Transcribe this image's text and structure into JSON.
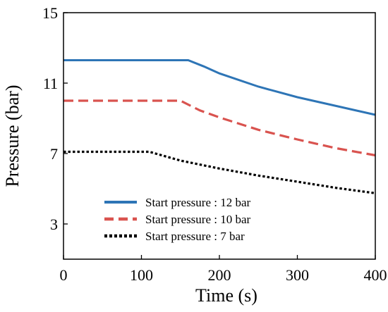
{
  "chart_data": {
    "type": "line",
    "xlabel": "Time (s)",
    "ylabel": "Pressure (bar)",
    "xlim": [
      0,
      400
    ],
    "ylim": [
      1,
      15
    ],
    "xticks": [
      0,
      100,
      200,
      300,
      400
    ],
    "yticks": [
      3,
      7,
      11,
      15
    ],
    "grid": false,
    "legend_position": "bottom-left",
    "series": [
      {
        "name": "Start pressure : 12 bar",
        "color": "#2e75b6",
        "style": "solid",
        "x": [
          0,
          160,
          180,
          200,
          250,
          300,
          350,
          400
        ],
        "y": [
          12.3,
          12.3,
          11.95,
          11.55,
          10.8,
          10.2,
          9.7,
          9.2
        ]
      },
      {
        "name": "Start pressure : 10 bar",
        "color": "#d9534f",
        "style": "dashed",
        "x": [
          0,
          150,
          175,
          200,
          250,
          300,
          350,
          400
        ],
        "y": [
          10.0,
          10.0,
          9.45,
          9.05,
          8.35,
          7.8,
          7.3,
          6.9
        ]
      },
      {
        "name": "Start pressure : 7 bar",
        "color": "#000000",
        "style": "dotted",
        "x": [
          0,
          110,
          150,
          200,
          250,
          300,
          350,
          400
        ],
        "y": [
          7.1,
          7.1,
          6.6,
          6.15,
          5.75,
          5.4,
          5.05,
          4.75
        ]
      }
    ]
  }
}
